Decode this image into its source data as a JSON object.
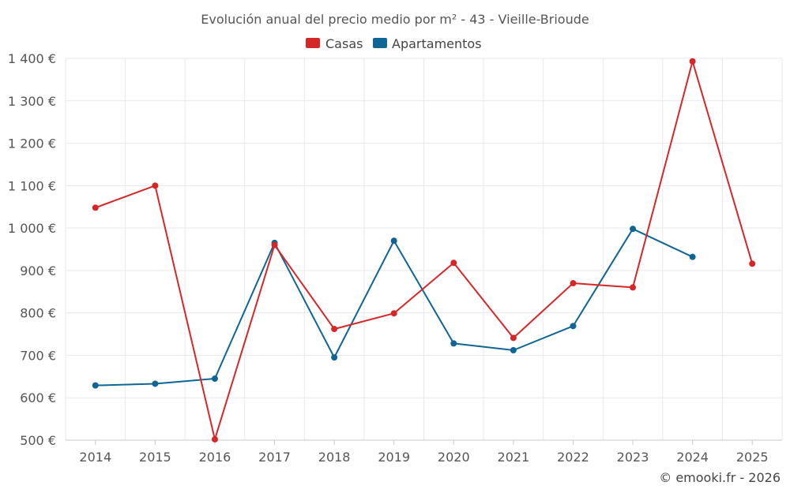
{
  "chart_data": {
    "type": "line",
    "title": "Evolución anual del precio medio por m² - 43 - Vieille-Brioude",
    "categories": [
      "2014",
      "2015",
      "2016",
      "2017",
      "2018",
      "2019",
      "2020",
      "2021",
      "2022",
      "2023",
      "2024",
      "2025"
    ],
    "y_tick_labels": [
      "500 €",
      "600 €",
      "700 €",
      "800 €",
      "900 €",
      "1 000 €",
      "1 100 €",
      "1 200 €",
      "1 300 €",
      "1 400 €"
    ],
    "y_ticks": [
      500,
      600,
      700,
      800,
      900,
      1000,
      1100,
      1200,
      1300,
      1400
    ],
    "ylim": [
      500,
      1400
    ],
    "grid": true,
    "legend_position": "top-center",
    "series": [
      {
        "name": "Casas",
        "color": "#d62728",
        "values": [
          1048,
          1100,
          502,
          960,
          762,
          799,
          918,
          741,
          870,
          860,
          1393,
          916
        ]
      },
      {
        "name": "Apartamentos",
        "color": "#0e6596",
        "values": [
          629,
          633,
          645,
          965,
          695,
          970,
          728,
          712,
          769,
          998,
          932,
          null
        ]
      }
    ],
    "credit": "© emooki.fr - 2026"
  }
}
